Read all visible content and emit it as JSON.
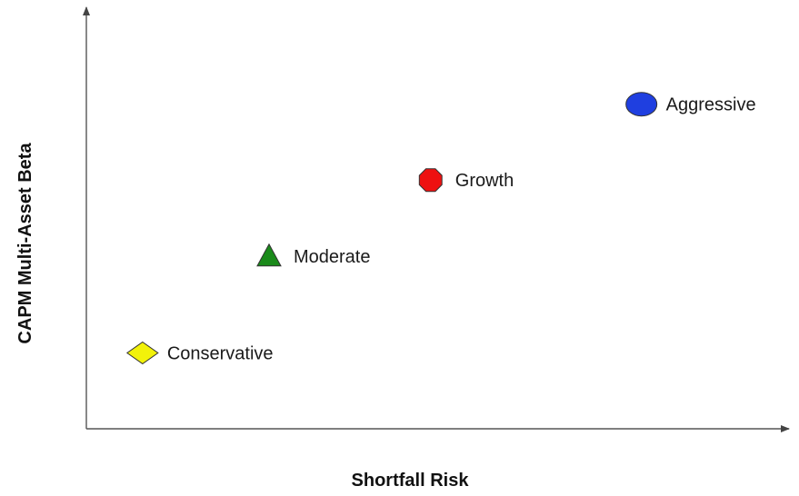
{
  "chart_data": {
    "type": "scatter",
    "title": "",
    "xlabel": "Shortfall Risk",
    "ylabel": "CAPM Multi-Asset Beta",
    "xlim": [
      0,
      100
    ],
    "ylim": [
      0,
      100
    ],
    "grid": false,
    "legend": "none",
    "x_ticks_shown": false,
    "y_ticks_shown": false,
    "points": [
      {
        "label": "Conservative",
        "x": 8,
        "y": 18,
        "marker": "diamond",
        "color": "#f2f20a"
      },
      {
        "label": "Moderate",
        "x": 26,
        "y": 41,
        "marker": "triangle",
        "color": "#1a8a1a"
      },
      {
        "label": "Growth",
        "x": 49,
        "y": 59,
        "marker": "octagon",
        "color": "#ee1111"
      },
      {
        "label": "Aggressive",
        "x": 79,
        "y": 77,
        "marker": "ellipse",
        "color": "#1f3fe0"
      }
    ]
  }
}
